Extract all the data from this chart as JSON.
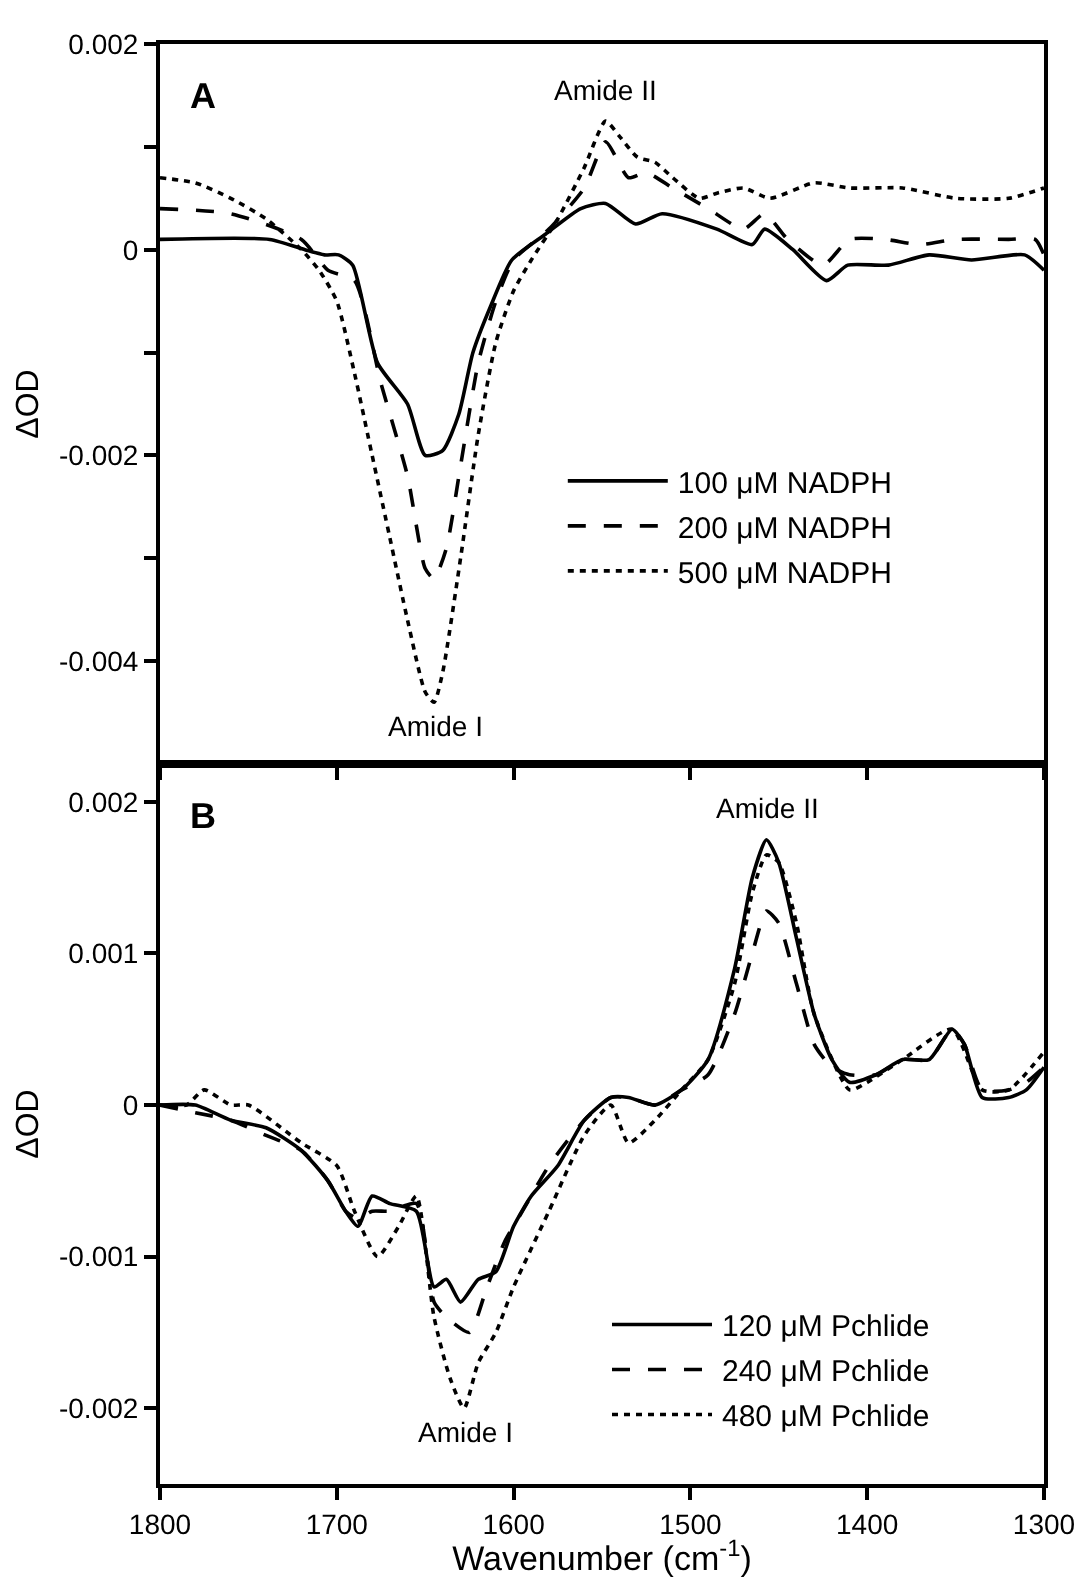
{
  "chart_data": [
    {
      "type": "line",
      "ylabel": "ΔOD",
      "xlim": [
        1800,
        1300
      ],
      "xticks": [
        1800,
        1700,
        1600,
        1500,
        1400,
        1300
      ],
      "ylim": [
        -0.005,
        0.002
      ],
      "yticks": [
        0.002,
        {
          "value": 0.001,
          "label": null
        },
        0,
        {
          "value": -0.001,
          "label": null
        },
        -0.002,
        {
          "value": -0.003,
          "label": null
        },
        -0.004
      ],
      "tick_labels": "y",
      "legend": "right",
      "grid": false,
      "annotations": [
        "A",
        {
          "text": "Amide I",
          "x": 1645,
          "y": -0.0044
        },
        {
          "text": "Amide II",
          "x": 1548,
          "y": 0.00125
        }
      ],
      "series": [
        {
          "name": "100 μM NADPH",
          "color": "#000000",
          "line_style": "solid",
          "x": [
            1800,
            1738,
            1718,
            1707,
            1699,
            1691,
            1677,
            1660,
            1650,
            1640,
            1631,
            1623,
            1613,
            1601,
            1582,
            1562,
            1548,
            1531,
            1516,
            1485,
            1465,
            1458,
            1442,
            1423,
            1411,
            1388,
            1365,
            1341,
            1311,
            1300
          ],
          "values": [
            0.0001,
            0.0001,
            0,
            -5e-05,
            -5e-05,
            -0.00015,
            -0.0011,
            -0.0015,
            -0.002,
            -0.00195,
            -0.0016,
            -0.001,
            -0.00055,
            -0.0001,
            0.00015,
            0.0004,
            0.00045,
            0.00025,
            0.00035,
            0.0002,
            5e-05,
            0.0002,
            0,
            -0.0003,
            -0.00015,
            -0.00015,
            -5e-05,
            -0.0001,
            -5e-05,
            -0.0002
          ]
        },
        {
          "name": "200 μM NADPH",
          "color": "#000000",
          "line_style": "dashed",
          "x": [
            1800,
            1760,
            1720,
            1705,
            1690,
            1675,
            1660,
            1650,
            1645,
            1638,
            1630,
            1620,
            1610,
            1600,
            1580,
            1560,
            1548,
            1535,
            1525,
            1510,
            1490,
            1470,
            1458,
            1445,
            1425,
            1410,
            1390,
            1370,
            1350,
            1320,
            1305,
            1300
          ],
          "values": [
            0.0004,
            0.00035,
            0.0001,
            -0.0002,
            -0.0003,
            -0.0013,
            -0.0022,
            -0.0031,
            -0.0032,
            -0.0029,
            -0.0021,
            -0.0011,
            -0.0005,
            -0.0001,
            0.0002,
            0.0006,
            0.00105,
            0.0007,
            0.00075,
            0.0006,
            0.0004,
            0.0002,
            0.00035,
            0.0001,
            -0.00015,
            0.0001,
            0.0001,
            5e-05,
            0.0001,
            0.0001,
            0.0001,
            -5e-05
          ]
        },
        {
          "name": "500 μM NADPH",
          "color": "#000000",
          "line_style": "dotted",
          "x": [
            1800,
            1780,
            1760,
            1740,
            1720,
            1710,
            1700,
            1690,
            1680,
            1670,
            1660,
            1650,
            1645,
            1640,
            1630,
            1620,
            1610,
            1600,
            1590,
            1575,
            1560,
            1548,
            1540,
            1530,
            1520,
            1510,
            1495,
            1485,
            1470,
            1455,
            1430,
            1410,
            1380,
            1350,
            1320,
            1300
          ],
          "values": [
            0.0007,
            0.00065,
            0.0005,
            0.0003,
            0,
            -0.0002,
            -0.0005,
            -0.0012,
            -0.002,
            -0.0028,
            -0.0036,
            -0.0043,
            -0.0044,
            -0.0041,
            -0.003,
            -0.0018,
            -0.0009,
            -0.0004,
            -0.0001,
            0.0003,
            0.0008,
            0.00125,
            0.0011,
            0.0009,
            0.00085,
            0.0007,
            0.0005,
            0.00055,
            0.0006,
            0.0005,
            0.00065,
            0.0006,
            0.0006,
            0.0005,
            0.0005,
            0.0006
          ]
        }
      ]
    },
    {
      "type": "line",
      "ylabel": "ΔOD",
      "xlabel": "Wavenumber (cm$^{-1}$)",
      "xlim": [
        1800,
        1300
      ],
      "xticks": [
        1800,
        1700,
        1600,
        1500,
        1400,
        1300
      ],
      "ylim": [
        -0.0025,
        0.00225
      ],
      "yticks": [
        0.002,
        0.001,
        0,
        -0.001,
        -0.002
      ],
      "legend": "bottom right",
      "grid": false,
      "annotations": [
        "B",
        {
          "text": "Amide I",
          "x": 1628,
          "y": -0.002
        },
        {
          "text": "Amide II",
          "x": 1457,
          "y": 0.00175
        }
      ],
      "series": [
        {
          "name": "120 μM Pchlide",
          "color": "#000000",
          "line_style": "solid",
          "x": [
            1800,
            1780,
            1760,
            1740,
            1720,
            1705,
            1695,
            1688,
            1680,
            1670,
            1655,
            1645,
            1638,
            1630,
            1620,
            1610,
            1600,
            1590,
            1575,
            1560,
            1545,
            1535,
            1520,
            1505,
            1490,
            1475,
            1465,
            1457,
            1450,
            1440,
            1430,
            1420,
            1410,
            1395,
            1380,
            1365,
            1352,
            1345,
            1335,
            1320,
            1310,
            1300
          ],
          "values": [
            0,
            0,
            -0.0001,
            -0.00015,
            -0.0003,
            -0.0005,
            -0.0007,
            -0.0008,
            -0.0006,
            -0.00065,
            -0.0007,
            -0.0012,
            -0.00115,
            -0.0013,
            -0.00115,
            -0.0011,
            -0.0008,
            -0.0006,
            -0.0004,
            -0.0001,
            5e-05,
            5e-05,
            0,
            0.0001,
            0.0003,
            0.0009,
            0.0015,
            0.00175,
            0.0016,
            0.0011,
            0.0006,
            0.0003,
            0.00015,
            0.0002,
            0.0003,
            0.0003,
            0.0005,
            0.0004,
            5e-05,
            5e-05,
            0.0001,
            0.00025
          ]
        },
        {
          "name": "240 μM Pchlide",
          "color": "#000000",
          "line_style": "dashed",
          "x": [
            1800,
            1780,
            1760,
            1740,
            1720,
            1705,
            1695,
            1688,
            1680,
            1670,
            1655,
            1645,
            1638,
            1625,
            1615,
            1605,
            1595,
            1580,
            1560,
            1545,
            1535,
            1520,
            1505,
            1490,
            1475,
            1465,
            1457,
            1450,
            1440,
            1430,
            1420,
            1410,
            1395,
            1380,
            1365,
            1352,
            1345,
            1335,
            1320,
            1310,
            1300
          ],
          "values": [
            0,
            -5e-05,
            -0.0001,
            -0.0002,
            -0.0003,
            -0.0005,
            -0.0007,
            -0.00075,
            -0.0007,
            -0.0007,
            -0.00065,
            -0.0013,
            -0.0014,
            -0.0015,
            -0.0012,
            -0.0009,
            -0.0007,
            -0.0004,
            -0.0001,
            5e-05,
            5e-05,
            0,
            0.0001,
            0.0002,
            0.0006,
            0.001,
            0.00128,
            0.0012,
            0.0008,
            0.0004,
            0.00025,
            0.0002,
            0.0002,
            0.0003,
            0.0003,
            0.0005,
            0.0004,
            0.0001,
            0.0001,
            0.00015,
            0.00025
          ]
        },
        {
          "name": "480 μM Pchlide",
          "color": "#000000",
          "line_style": "dotted",
          "x": [
            1800,
            1785,
            1775,
            1760,
            1750,
            1720,
            1700,
            1690,
            1677,
            1665,
            1655,
            1645,
            1636,
            1628,
            1620,
            1610,
            1600,
            1580,
            1560,
            1545,
            1535,
            1520,
            1505,
            1490,
            1475,
            1465,
            1457,
            1450,
            1440,
            1430,
            1410,
            1400,
            1380,
            1352,
            1335,
            1320,
            1300
          ],
          "values": [
            0,
            0,
            0.0001,
            0,
            0,
            -0.00025,
            -0.0004,
            -0.0007,
            -0.001,
            -0.0008,
            -0.0006,
            -0.0014,
            -0.0018,
            -0.002,
            -0.0017,
            -0.0015,
            -0.0012,
            -0.0007,
            -0.0002,
            0,
            -0.00025,
            -0.0001,
            0.0001,
            0.0003,
            0.0008,
            0.0014,
            0.00165,
            0.0016,
            0.0012,
            0.0006,
            0.0001,
            0.00015,
            0.0003,
            0.0005,
            0.0001,
            0.0001,
            0.00035
          ]
        }
      ]
    }
  ]
}
